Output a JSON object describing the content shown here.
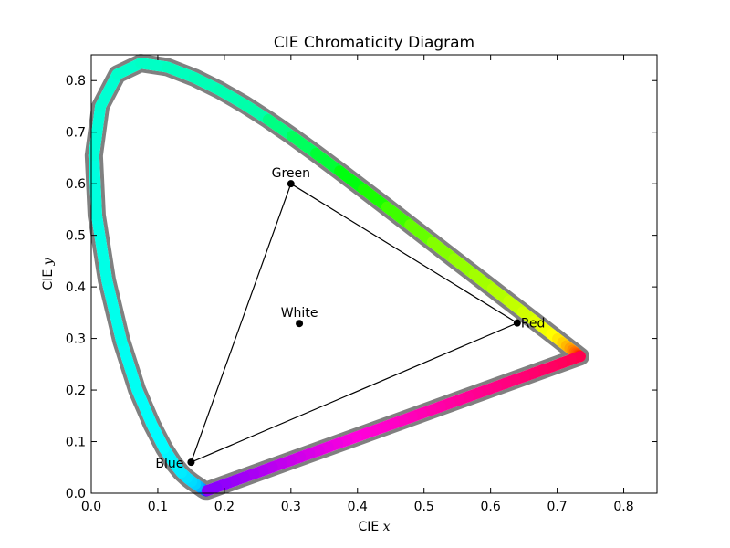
{
  "chart_data": {
    "type": "scatter",
    "title": "CIE Chromaticity Diagram",
    "xlabel": "CIE",
    "xlabel_var": "x",
    "ylabel": "CIE",
    "ylabel_var": "y",
    "xlim": [
      0.0,
      0.85
    ],
    "ylim": [
      0.0,
      0.85
    ],
    "x_ticks": [
      "0.0",
      "0.1",
      "0.2",
      "0.3",
      "0.4",
      "0.5",
      "0.6",
      "0.7",
      "0.8"
    ],
    "y_ticks": [
      "0.0",
      "0.1",
      "0.2",
      "0.3",
      "0.4",
      "0.5",
      "0.6",
      "0.7",
      "0.8"
    ],
    "grid": false,
    "locus": [
      [
        0.1741,
        0.005
      ],
      [
        0.174,
        0.005
      ],
      [
        0.1738,
        0.0049
      ],
      [
        0.1736,
        0.0049
      ],
      [
        0.1733,
        0.0048
      ],
      [
        0.173,
        0.0048
      ],
      [
        0.1726,
        0.0048
      ],
      [
        0.1721,
        0.0048
      ],
      [
        0.1714,
        0.0051
      ],
      [
        0.1703,
        0.0058
      ],
      [
        0.1689,
        0.0069
      ],
      [
        0.1669,
        0.0086
      ],
      [
        0.1644,
        0.0109
      ],
      [
        0.1611,
        0.0138
      ],
      [
        0.1566,
        0.0177
      ],
      [
        0.151,
        0.0227
      ],
      [
        0.144,
        0.0297
      ],
      [
        0.1355,
        0.0399
      ],
      [
        0.1241,
        0.0578
      ],
      [
        0.1096,
        0.0868
      ],
      [
        0.0913,
        0.1327
      ],
      [
        0.0687,
        0.2007
      ],
      [
        0.0454,
        0.295
      ],
      [
        0.0235,
        0.4127
      ],
      [
        0.0082,
        0.5384
      ],
      [
        0.0039,
        0.6548
      ],
      [
        0.0139,
        0.7502
      ],
      [
        0.0389,
        0.812
      ],
      [
        0.0743,
        0.8338
      ],
      [
        0.1142,
        0.8262
      ],
      [
        0.1547,
        0.8059
      ],
      [
        0.1929,
        0.7816
      ],
      [
        0.2296,
        0.7543
      ],
      [
        0.2658,
        0.7243
      ],
      [
        0.3016,
        0.6923
      ],
      [
        0.3373,
        0.6589
      ],
      [
        0.3731,
        0.6245
      ],
      [
        0.4087,
        0.5896
      ],
      [
        0.4441,
        0.5547
      ],
      [
        0.4788,
        0.5202
      ],
      [
        0.5125,
        0.4866
      ],
      [
        0.5448,
        0.4544
      ],
      [
        0.5752,
        0.4242
      ],
      [
        0.6029,
        0.3965
      ],
      [
        0.627,
        0.3725
      ],
      [
        0.6482,
        0.3514
      ],
      [
        0.6658,
        0.334
      ],
      [
        0.6801,
        0.3197
      ],
      [
        0.6915,
        0.3083
      ],
      [
        0.7006,
        0.2993
      ],
      [
        0.7079,
        0.292
      ],
      [
        0.714,
        0.2859
      ],
      [
        0.719,
        0.2809
      ],
      [
        0.723,
        0.277
      ],
      [
        0.726,
        0.274
      ],
      [
        0.7283,
        0.2717
      ],
      [
        0.73,
        0.27
      ],
      [
        0.7311,
        0.2689
      ],
      [
        0.732,
        0.268
      ],
      [
        0.7327,
        0.2673
      ],
      [
        0.7334,
        0.2666
      ],
      [
        0.734,
        0.266
      ],
      [
        0.7344,
        0.2656
      ],
      [
        0.7346,
        0.2654
      ],
      [
        0.7347,
        0.2653
      ]
    ],
    "primaries": [
      {
        "label": "Red",
        "x": 0.64,
        "y": 0.33
      },
      {
        "label": "Green",
        "x": 0.3,
        "y": 0.6
      },
      {
        "label": "Blue",
        "x": 0.15,
        "y": 0.06
      }
    ],
    "white": {
      "label": "White",
      "x": 0.3127,
      "y": 0.329
    },
    "colors": {
      "outline": "#808080",
      "triangle": "#000000",
      "point": "#000000",
      "axes": "#000000"
    }
  }
}
